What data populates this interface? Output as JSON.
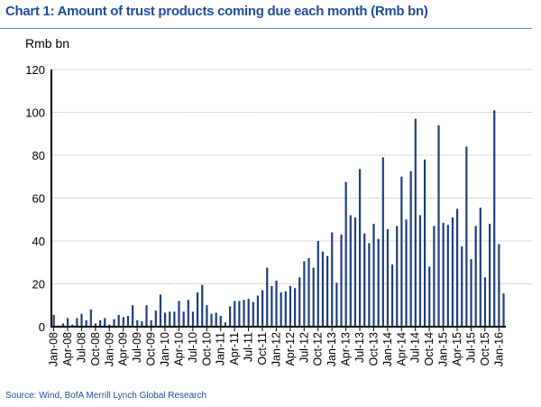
{
  "chart_data": {
    "type": "bar",
    "title": "Chart 1: Amount of trust products coming due each month (Rmb bn)",
    "ylabel": "Rmb bn",
    "xlabel": "",
    "ylim": [
      0,
      120
    ],
    "yticks": [
      "0",
      "20",
      "40",
      "60",
      "80",
      "100",
      "120"
    ],
    "grid": true,
    "bar_color": "#1f3f7a",
    "xtick_labels": [
      "Jan-08",
      "Apr-08",
      "Jul-08",
      "Oct-08",
      "Jan-09",
      "Apr-09",
      "Jul-09",
      "Oct-09",
      "Jan-10",
      "Apr-10",
      "Jul-10",
      "Oct-10",
      "Jan-11",
      "Apr-11",
      "Jul-11",
      "Oct-11",
      "Jan-12",
      "Apr-12",
      "Jul-12",
      "Oct-12",
      "Jan-13",
      "Apr-13",
      "Jul-13",
      "Oct-13",
      "Jan-14",
      "Apr-14",
      "Jul-14",
      "Oct-14",
      "Jan-15",
      "Apr-15",
      "Jul-15",
      "Oct-15",
      "Jan-16"
    ],
    "start_month": "Jan-08",
    "values": [
      5.5,
      0.5,
      1.5,
      4,
      1,
      4,
      6,
      3,
      8,
      1.5,
      3,
      4,
      1,
      3.5,
      5.5,
      4.5,
      5,
      10,
      3,
      2.5,
      10,
      3,
      7.5,
      15,
      6.5,
      7,
      7,
      12,
      7,
      12.5,
      7,
      16,
      19.5,
      10,
      6,
      6.5,
      5,
      2,
      9.5,
      12,
      12,
      12.5,
      13,
      11.5,
      14.5,
      17,
      27.5,
      19,
      21.5,
      16,
      16.5,
      19,
      18,
      23,
      30.5,
      32,
      27.5,
      40,
      35,
      33,
      44,
      20.5,
      43,
      67.5,
      52,
      51,
      73.5,
      43.5,
      39,
      48,
      41,
      79,
      45.5,
      29,
      47,
      70,
      50,
      72.5,
      97,
      52,
      78,
      28,
      47,
      94,
      48.5,
      47.5,
      51,
      55,
      37.5,
      84,
      31.5,
      47,
      55.5,
      23,
      48,
      101,
      38.5,
      15.5
    ]
  },
  "source": "Source: Wind, BofA Merrill Lynch Global Research"
}
